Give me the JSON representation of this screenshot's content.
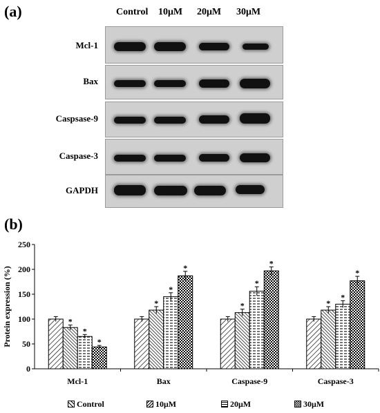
{
  "panel_a": {
    "label": "(a)",
    "lanes": [
      "Control",
      "10μM",
      "20μM",
      "30μM"
    ],
    "rows": [
      "Mcl-1",
      "Bax",
      "Caspsase-9",
      "Caspase-3",
      "GAPDH"
    ]
  },
  "panel_b": {
    "label": "(b)"
  },
  "chart_data": {
    "type": "bar",
    "title": "",
    "xlabel": "",
    "ylabel": "Protein expression (%)",
    "ylim": [
      0,
      250
    ],
    "yticks": [
      "0",
      "50",
      "100",
      "150",
      "200",
      "250"
    ],
    "categories": [
      "Mcl-1",
      "Bax",
      "Caspase-9",
      "Caspase-3"
    ],
    "series": [
      {
        "name": "Control",
        "values": [
          100,
          100,
          100,
          100
        ],
        "errors": [
          5,
          5,
          5,
          5
        ],
        "sig": [
          "",
          "",
          "",
          ""
        ],
        "pattern": "diag"
      },
      {
        "name": "10μM",
        "values": [
          83,
          118,
          113,
          118
        ],
        "errors": [
          5,
          7,
          7,
          7
        ],
        "sig": [
          "*",
          "*",
          "*",
          "*"
        ],
        "pattern": "back"
      },
      {
        "name": "20μM",
        "values": [
          65,
          145,
          156,
          130
        ],
        "errors": [
          4,
          8,
          9,
          7
        ],
        "sig": [
          "*",
          "*",
          "*",
          "*"
        ],
        "pattern": "dash"
      },
      {
        "name": "30μM",
        "values": [
          44,
          187,
          197,
          177
        ],
        "errors": [
          3,
          9,
          8,
          9
        ],
        "sig": [
          "*",
          "*",
          "*",
          "*"
        ],
        "pattern": "check"
      }
    ],
    "legend_position": "bottom"
  }
}
